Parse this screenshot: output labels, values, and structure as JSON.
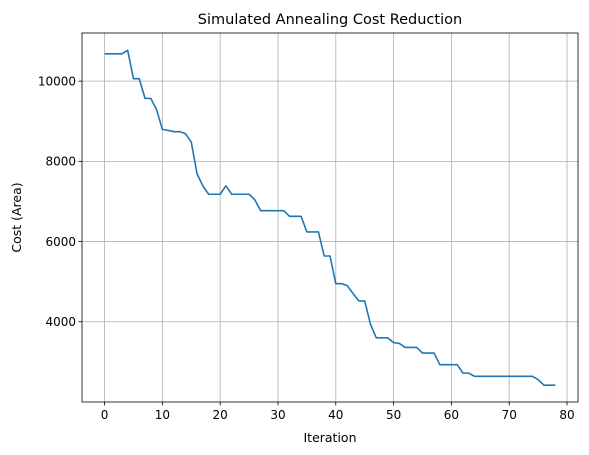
{
  "chart_data": {
    "type": "line",
    "title": "Simulated Annealing Cost Reduction",
    "xlabel": "Iteration",
    "ylabel": "Cost (Area)",
    "xlim": [
      -3.9,
      81.9
    ],
    "ylim": [
      2000,
      11200
    ],
    "xticks": [
      0,
      10,
      20,
      30,
      40,
      50,
      60,
      70,
      80
    ],
    "yticks": [
      4000,
      6000,
      8000,
      10000
    ],
    "grid": true,
    "series": [
      {
        "color": "#1f77b4",
        "x": [
          0,
          1,
          2,
          3,
          4,
          5,
          6,
          7,
          8,
          9,
          10,
          11,
          12,
          13,
          14,
          15,
          16,
          17,
          18,
          19,
          20,
          21,
          22,
          23,
          24,
          25,
          26,
          27,
          28,
          29,
          30,
          31,
          32,
          33,
          34,
          35,
          36,
          37,
          38,
          39,
          40,
          41,
          42,
          43,
          44,
          45,
          46,
          47,
          48,
          49,
          50,
          51,
          52,
          53,
          54,
          55,
          56,
          57,
          58,
          59,
          60,
          61,
          62,
          63,
          64,
          65,
          66,
          67,
          68,
          69,
          70,
          71,
          72,
          73,
          74,
          75,
          76,
          77,
          78
        ],
        "y": [
          10680,
          10680,
          10680,
          10680,
          10770,
          10060,
          10060,
          9570,
          9570,
          9290,
          8800,
          8770,
          8740,
          8740,
          8690,
          8480,
          7690,
          7390,
          7180,
          7180,
          7180,
          7390,
          7180,
          7180,
          7180,
          7180,
          7040,
          6770,
          6770,
          6770,
          6770,
          6770,
          6630,
          6630,
          6630,
          6240,
          6240,
          6240,
          5640,
          5640,
          4950,
          4950,
          4900,
          4700,
          4520,
          4520,
          3940,
          3600,
          3600,
          3600,
          3480,
          3460,
          3360,
          3360,
          3360,
          3220,
          3220,
          3220,
          2930,
          2930,
          2930,
          2930,
          2720,
          2720,
          2640,
          2640,
          2640,
          2640,
          2640,
          2640,
          2640,
          2640,
          2640,
          2640,
          2640,
          2560,
          2420,
          2420,
          2420
        ]
      }
    ]
  }
}
